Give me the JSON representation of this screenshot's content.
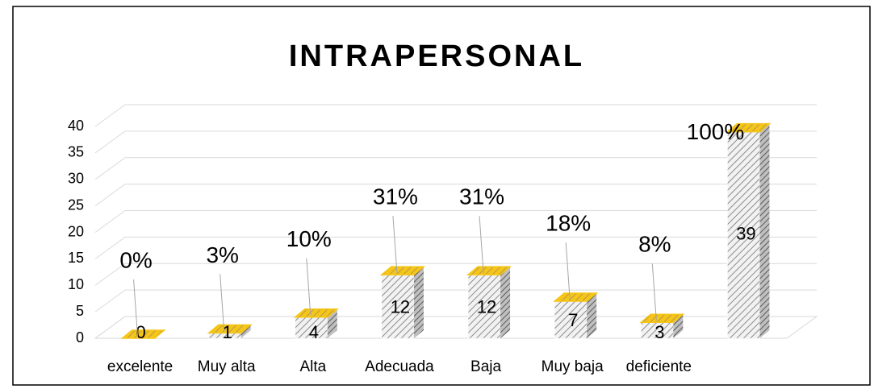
{
  "chart_data": {
    "type": "bar3d",
    "title": "INTRAPERSONAL",
    "categories": [
      "excelente",
      "Muy alta",
      "Alta",
      "Adecuada",
      "Baja",
      "Muy baja",
      "deficiente",
      null
    ],
    "values": [
      0,
      1,
      4,
      12,
      12,
      7,
      3,
      39
    ],
    "annotations": [
      "0%",
      "3%",
      "10%",
      "31%",
      "31%",
      "18%",
      "8%",
      "100%"
    ],
    "color": "#f5c518",
    "ylim": [
      0,
      40
    ],
    "yticks": [
      0,
      5,
      10,
      15,
      20,
      25,
      30,
      35,
      40
    ],
    "grid": true
  }
}
